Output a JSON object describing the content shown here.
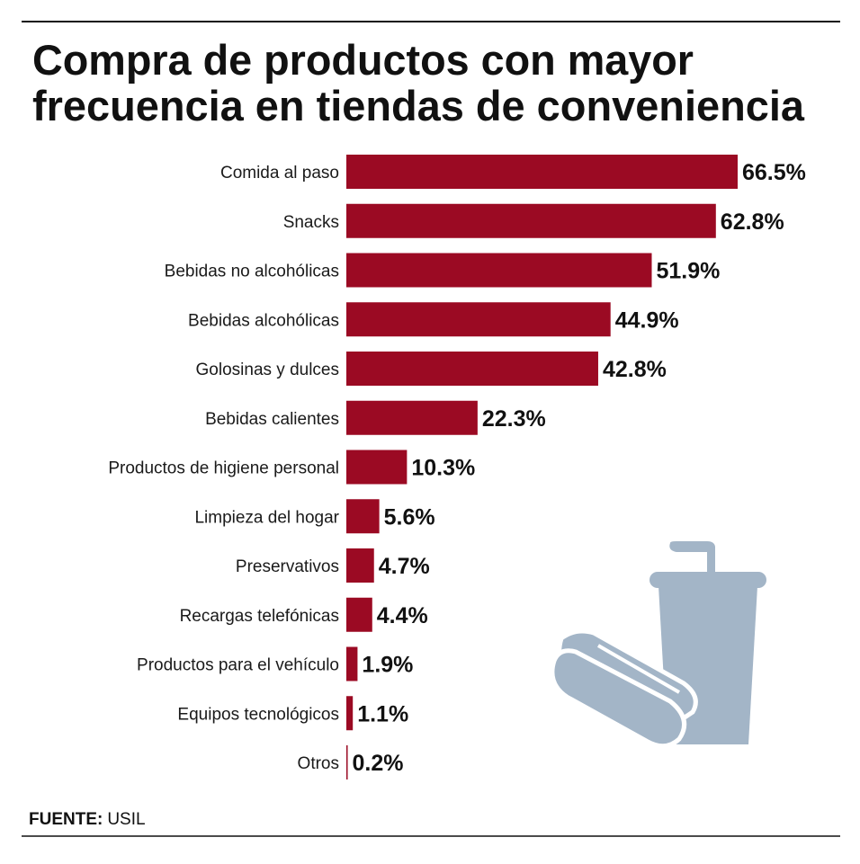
{
  "chart_data": {
    "type": "bar",
    "orientation": "horizontal",
    "title": "Compra de productos con mayor frecuencia en tiendas de conveniencia",
    "title_lines": [
      "Compra de productos con mayor",
      "frecuencia en tiendas de conveniencia"
    ],
    "categories": [
      "Comida al paso",
      "Snacks",
      "Bebidas no alcohólicas",
      "Bebidas alcohólicas",
      "Golosinas y dulces",
      "Bebidas calientes",
      "Productos de higiene personal",
      "Limpieza del hogar",
      "Preservativos",
      "Recargas telefónicas",
      "Productos para el vehículo",
      "Equipos tecnológicos",
      "Otros"
    ],
    "values": [
      66.5,
      62.8,
      51.9,
      44.9,
      42.8,
      22.3,
      10.3,
      5.6,
      4.7,
      4.4,
      1.9,
      1.1,
      0.2
    ],
    "value_labels": [
      "66.5%",
      "62.8%",
      "51.9%",
      "44.9%",
      "42.8%",
      "22.3%",
      "10.3%",
      "5.6%",
      "4.7%",
      "4.4%",
      "1.9%",
      "1.1%",
      "0.2%"
    ],
    "unit": "%",
    "grid": false,
    "bar_color": "#9b0a23",
    "illustration": "hotdog-and-soda-cup-icon",
    "illustration_color": "#a3b5c7"
  },
  "source": {
    "label": "FUENTE:",
    "value": "USIL"
  }
}
